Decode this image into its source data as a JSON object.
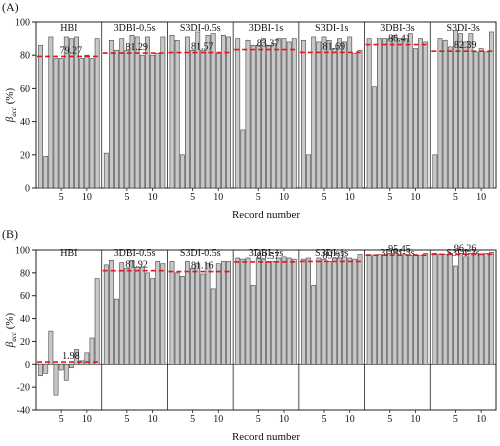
{
  "chart_data": [
    {
      "type": "bar",
      "panel_label": "(A)",
      "ylabel_main": "β",
      "ylabel_sub": "acc",
      "ylabel_unit": "(%)",
      "xlabel": "Record number",
      "ylim": [
        0,
        100
      ],
      "yticks": [
        0,
        20,
        40,
        60,
        80,
        100
      ],
      "xticks": [
        5,
        10
      ],
      "grid": false,
      "groups": [
        {
          "name": "HBI",
          "mean": 79.27,
          "mean_label": "79.27",
          "values": [
            86,
            19,
            91,
            78,
            78,
            91,
            90,
            91,
            78,
            80,
            78,
            90
          ]
        },
        {
          "name": "3DBI-0.5s",
          "mean": 81.29,
          "mean_label": "81.29",
          "values": [
            21,
            89,
            83,
            90,
            83,
            92,
            91,
            80,
            91,
            80,
            81,
            91
          ]
        },
        {
          "name": "S3DI-0.5s",
          "mean": 81.57,
          "mean_label": "81.57",
          "values": [
            92,
            89,
            20,
            91,
            83,
            94,
            83,
            92,
            93,
            81,
            92,
            91
          ]
        },
        {
          "name": "3DBI-1s",
          "mean": 83.37,
          "mean_label": "83.37",
          "values": [
            90,
            35,
            89,
            86,
            86,
            90,
            86,
            87,
            90,
            90,
            88,
            90
          ]
        },
        {
          "name": "S3DI-1s",
          "mean": 81.69,
          "mean_label": "81.69",
          "values": [
            89,
            20,
            91,
            88,
            91,
            89,
            84,
            90,
            88,
            91,
            81,
            83
          ]
        },
        {
          "name": "3DBI-3s",
          "mean": 86.41,
          "mean_label": "86.41",
          "values": [
            90,
            61,
            90,
            90,
            90,
            92,
            90,
            90,
            93,
            84,
            90,
            88
          ]
        },
        {
          "name": "S3DI-3s",
          "mean": 82.39,
          "mean_label": "82.39",
          "values": [
            20,
            90,
            89,
            85,
            95,
            93,
            88,
            93,
            82,
            84,
            82,
            94
          ]
        }
      ]
    },
    {
      "type": "bar",
      "panel_label": "(B)",
      "ylabel_main": "β",
      "ylabel_sub": "acc",
      "ylabel_unit": "(%)",
      "xlabel": "Record number",
      "ylim": [
        -40,
        100
      ],
      "yticks": [
        -40,
        -20,
        0,
        20,
        40,
        60,
        80,
        100
      ],
      "xticks": [
        5,
        10
      ],
      "grid": false,
      "groups": [
        {
          "name": "HBI",
          "mean": 1.98,
          "mean_label": "1.98",
          "values": [
            -10,
            -8,
            29,
            -27,
            -5,
            -14,
            -3,
            13,
            3,
            10,
            23,
            75
          ]
        },
        {
          "name": "3DBI-0.5s",
          "mean": 81.92,
          "mean_label": "81.92",
          "values": [
            87,
            91,
            57,
            89,
            84,
            91,
            85,
            85,
            80,
            75,
            90,
            88
          ]
        },
        {
          "name": "S3DI-0.5s",
          "mean": 81.16,
          "mean_label": "81.16",
          "values": [
            90,
            80,
            77,
            90,
            84,
            88,
            79,
            88,
            66,
            88,
            90,
            90
          ]
        },
        {
          "name": "3DBI-1s",
          "mean": 89.57,
          "mean_label": "89.57",
          "values": [
            93,
            92,
            93,
            69,
            93,
            92,
            90,
            90,
            93,
            94,
            93,
            92
          ]
        },
        {
          "name": "S3DI-1s",
          "mean": 89.97,
          "mean_label": "89.97",
          "values": [
            92,
            93,
            69,
            93,
            92,
            90,
            93,
            93,
            94,
            93,
            92,
            96
          ]
        },
        {
          "name": "3DBI-3s",
          "mean": 95.45,
          "mean_label": "95.45",
          "values": [
            96,
            95,
            96,
            95,
            97,
            97,
            95,
            96,
            95,
            96,
            95,
            97
          ]
        },
        {
          "name": "S3DI-3s",
          "mean": 96.26,
          "mean_label": "96.26",
          "values": [
            97,
            96,
            96,
            97,
            86,
            97,
            94,
            97,
            97,
            96,
            97,
            98
          ]
        }
      ]
    }
  ],
  "colors": {
    "bar_fill": "#c8c8c8",
    "bar_stroke": "#444444",
    "mean_line": "#e8161b",
    "axis": "#222222"
  }
}
